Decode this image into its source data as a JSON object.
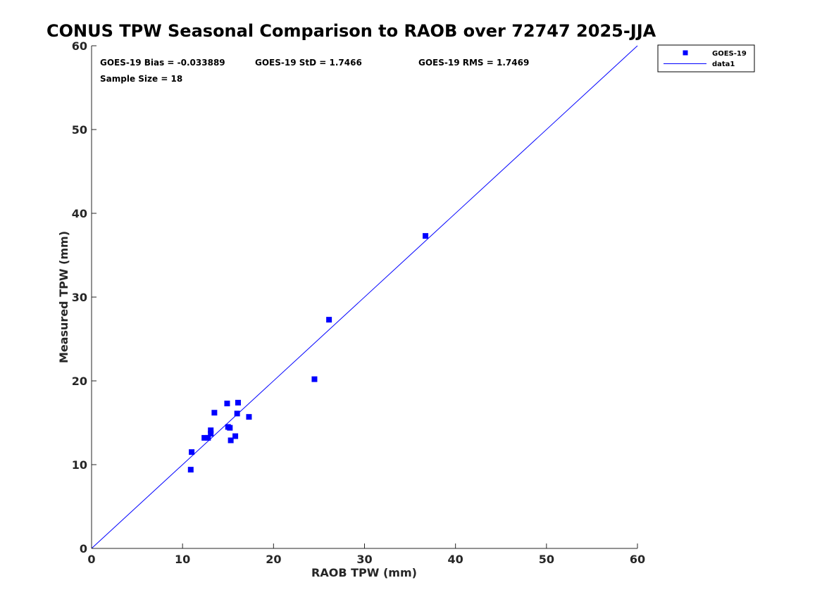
{
  "chart_data": {
    "type": "scatter",
    "title": "CONUS TPW Seasonal Comparison to RAOB over 72747 2025-JJA",
    "xlabel": "RAOB TPW (mm)",
    "ylabel": "Measured TPW (mm)",
    "xlim": [
      0,
      60
    ],
    "ylim": [
      0,
      60
    ],
    "xticks": [
      0,
      10,
      20,
      30,
      40,
      50,
      60
    ],
    "yticks": [
      0,
      10,
      20,
      30,
      40,
      50,
      60
    ],
    "grid": false,
    "legend_position": "top-right-outside",
    "annotations": {
      "bias": "GOES-19 Bias = -0.033889",
      "std": "GOES-19 StD = 1.7466",
      "rms": "GOES-19 RMS = 1.7469",
      "sample": "Sample Size = 18"
    },
    "series": [
      {
        "name": "GOES-19",
        "kind": "markers",
        "color": "#0000ff",
        "x": [
          10.9,
          11.0,
          12.4,
          12.8,
          13.1,
          13.1,
          13.5,
          14.9,
          15.0,
          15.2,
          15.3,
          15.8,
          16.0,
          16.1,
          17.3,
          24.5,
          26.1,
          36.7
        ],
        "y": [
          9.4,
          11.5,
          13.2,
          13.2,
          14.1,
          13.7,
          16.2,
          17.3,
          14.5,
          14.4,
          12.9,
          13.4,
          16.1,
          17.4,
          15.7,
          20.2,
          27.3,
          37.3
        ]
      },
      {
        "name": "data1",
        "kind": "line",
        "color": "#0000ff",
        "x": [
          0,
          60
        ],
        "y": [
          0,
          60
        ]
      }
    ]
  }
}
